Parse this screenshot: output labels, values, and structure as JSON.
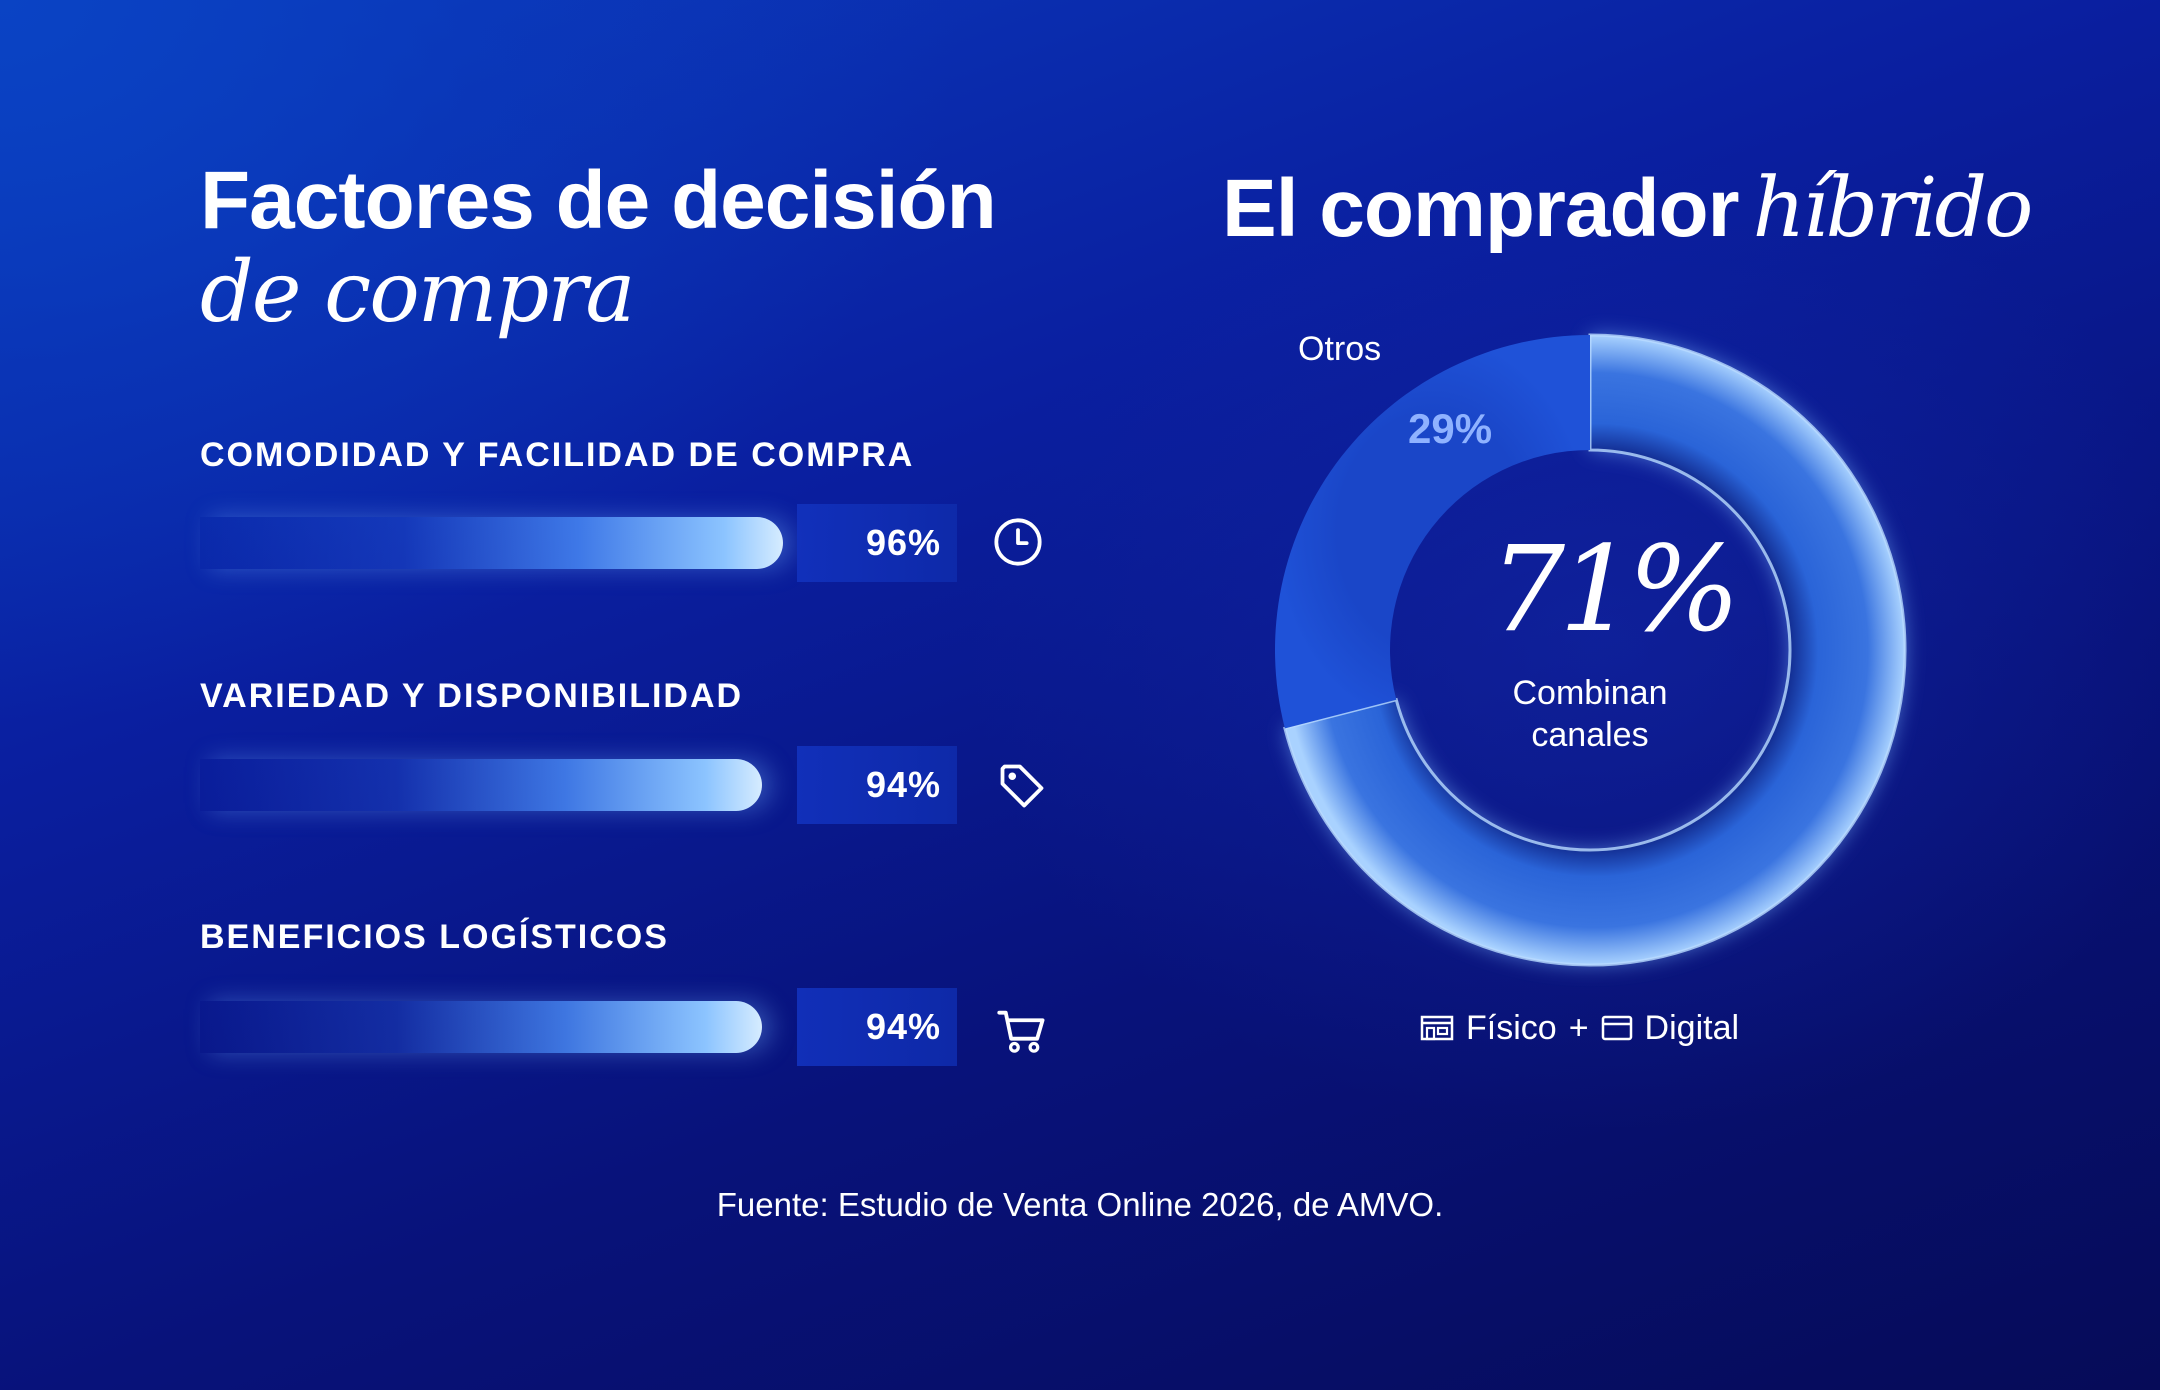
{
  "left": {
    "title_line1": "Factores de decisión",
    "title_line2": "de compra"
  },
  "right": {
    "title_main": "El comprador",
    "title_italic": "híbrido",
    "center_value": "71%",
    "center_label_line1": "Combinan",
    "center_label_line2": "canales",
    "others_label": "Otros",
    "others_value": "29%",
    "legend": {
      "physical": "Físico",
      "plus": "+",
      "digital": "Digital"
    }
  },
  "source": "Fuente: Estudio de Venta Online 2026, de AMVO.",
  "colors": {
    "background_top": "#0b3bbd",
    "background_bottom": "#060b58",
    "bar_glow": "#8cc4ff",
    "donut_main": "#6ea8ff",
    "donut_others": "#1f4fd6",
    "others_text": "#8fb2ff"
  },
  "chart_data": [
    {
      "type": "bar",
      "orientation": "horizontal",
      "title": "Factores de decisión de compra",
      "categories": [
        "COMODIDAD Y FACILIDAD DE COMPRA",
        "VARIEDAD Y DISPONIBILIDAD",
        "BENEFICIOS LOGÍSTICOS"
      ],
      "values": [
        96,
        94,
        94
      ],
      "value_labels": [
        "96%",
        "94%",
        "94%"
      ],
      "icons": [
        "clock-icon",
        "tag-icon",
        "cart-icon"
      ],
      "xlim": [
        0,
        100
      ],
      "grid": false
    },
    {
      "type": "pie",
      "variant": "donut",
      "title": "El comprador híbrido",
      "labels": [
        "Combinan canales",
        "Otros"
      ],
      "values": [
        71,
        29
      ],
      "value_labels": [
        "71%",
        "29%"
      ],
      "legend": "bottom"
    }
  ]
}
